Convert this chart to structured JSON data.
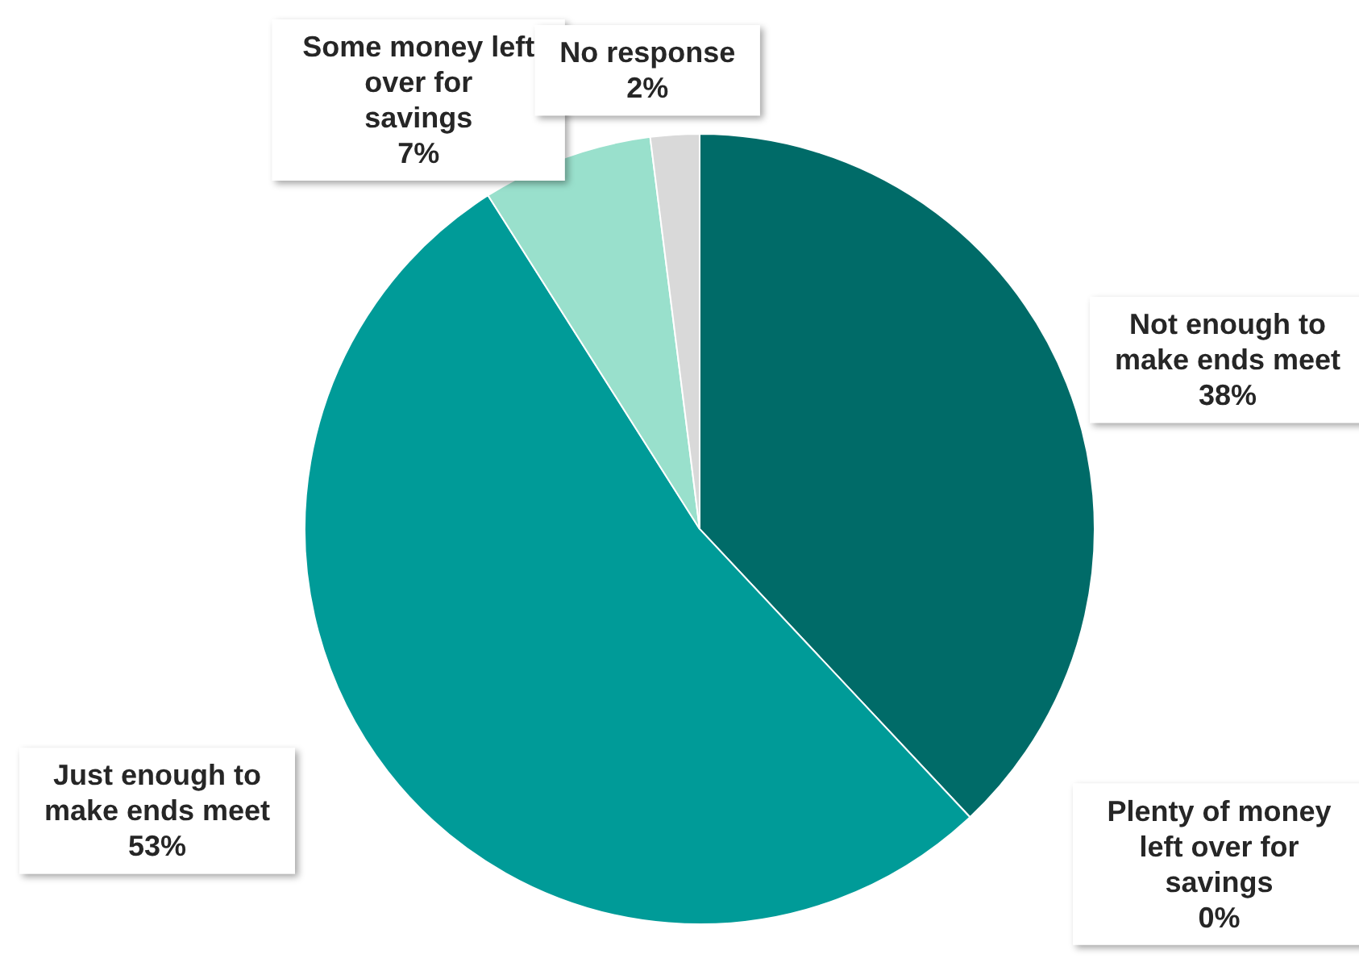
{
  "chart_data": {
    "type": "pie",
    "categories": [
      "Not enough to make ends meet",
      "Plenty of money left over for savings",
      "Just enough to make ends meet",
      "Some money left over for savings",
      "No response"
    ],
    "values": [
      38,
      0,
      53,
      7,
      2
    ],
    "value_labels": [
      "38%",
      "0%",
      "53%",
      "7%",
      "2%"
    ],
    "colors": [
      "#006b68",
      "#00857f",
      "#009b98",
      "#99e0cc",
      "#d9d9d9"
    ],
    "legend": false
  }
}
